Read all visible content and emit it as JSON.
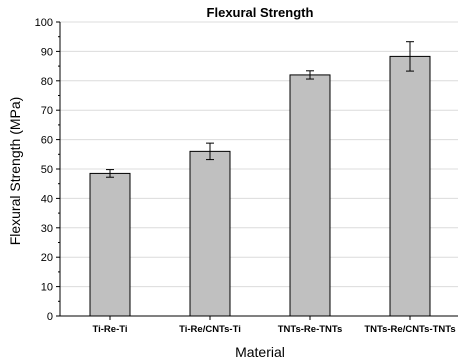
{
  "chart_data": {
    "type": "bar",
    "title": "Flexural Strength",
    "xlabel": "Material",
    "ylabel": "Flexural Strength (MPa)",
    "categories": [
      "Ti-Re-Ti",
      "Ti-Re/CNTs-Ti",
      "TNTs-Re-TNTs",
      "TNTs-Re/CNTs-TNTs"
    ],
    "values": [
      48.5,
      56.0,
      82.0,
      88.3
    ],
    "error": [
      1.3,
      2.8,
      1.4,
      5.0
    ],
    "ylim": [
      0,
      100
    ],
    "yticks": [
      "0",
      "10",
      "20",
      "30",
      "40",
      "50",
      "60",
      "70",
      "80",
      "90",
      "100"
    ],
    "grid": true,
    "bar_color": "#c0c0c0",
    "grid_color": "#dcdcdc"
  }
}
